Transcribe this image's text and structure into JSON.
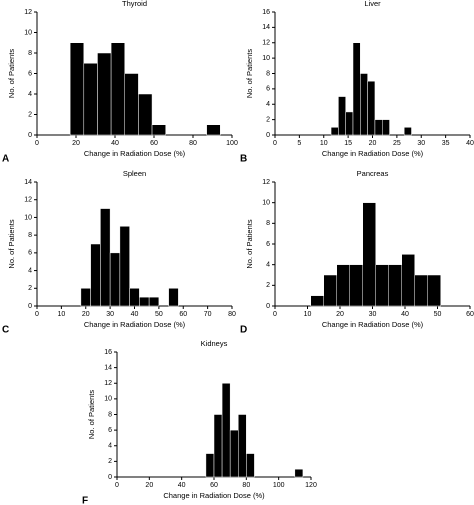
{
  "chart_data": [
    {
      "type": "histogram",
      "panel_label": "A",
      "title": "Thyroid",
      "x_label": "Change in Radiation Dose (%)",
      "y_label": "No. of Patients",
      "color": "#000000",
      "bins": [
        17,
        24,
        31,
        38,
        45,
        52,
        59,
        66,
        73,
        80,
        87,
        94
      ],
      "values": [
        9,
        7,
        8,
        9,
        6,
        4,
        1,
        0,
        0,
        0,
        1
      ],
      "xlim": [
        0,
        100
      ],
      "xticks": [
        0,
        20,
        40,
        60,
        80,
        100
      ],
      "ylim": [
        0,
        12
      ],
      "yticks": [
        0,
        2,
        4,
        6,
        8,
        10,
        12
      ]
    },
    {
      "type": "histogram",
      "panel_label": "B",
      "title": "Liver",
      "x_label": "Change in Radiation Dose (%)",
      "y_label": "No. of Patients",
      "color": "#000000",
      "bins": [
        11.5,
        13,
        14.5,
        16,
        17.5,
        19,
        20.5,
        22,
        23.5,
        25,
        26.5,
        28
      ],
      "values": [
        1,
        5,
        3,
        12,
        8,
        7,
        2,
        2,
        0,
        0,
        1
      ],
      "xlim": [
        0,
        40
      ],
      "xticks": [
        0,
        5,
        10,
        15,
        20,
        25,
        30,
        35,
        40
      ],
      "ylim": [
        0,
        16
      ],
      "yticks": [
        0,
        2,
        4,
        6,
        8,
        10,
        12,
        14,
        16
      ]
    },
    {
      "type": "histogram",
      "panel_label": "C",
      "title": "Spleen",
      "x_label": "Change in Radiation Dose (%)",
      "y_label": "No. of Patients",
      "color": "#000000",
      "bins": [
        18,
        22,
        26,
        30,
        34,
        38,
        42,
        46,
        50,
        54,
        58
      ],
      "values": [
        2,
        7,
        11,
        6,
        9,
        2,
        1,
        1,
        0,
        2
      ],
      "xlim": [
        0,
        80
      ],
      "xticks": [
        0,
        10,
        20,
        30,
        40,
        50,
        60,
        70,
        80
      ],
      "ylim": [
        0,
        14
      ],
      "yticks": [
        0,
        2,
        4,
        6,
        8,
        10,
        12,
        14
      ]
    },
    {
      "type": "histogram",
      "panel_label": "D",
      "title": "Pancreas",
      "x_label": "Change in Radiation Dose (%)",
      "y_label": "No. of Patients",
      "color": "#000000",
      "bins": [
        11,
        15,
        19,
        23,
        27,
        31,
        35,
        39,
        43,
        47,
        51
      ],
      "values": [
        1,
        3,
        4,
        4,
        10,
        4,
        4,
        5,
        3,
        3
      ],
      "xlim": [
        0,
        60
      ],
      "xticks": [
        0,
        10,
        20,
        30,
        40,
        50,
        60
      ],
      "ylim": [
        0,
        12
      ],
      "yticks": [
        0,
        2,
        4,
        6,
        8,
        10,
        12
      ]
    },
    {
      "type": "histogram",
      "panel_label": "F",
      "title": "Kidneys",
      "x_label": "Change in Radiation Dose (%)",
      "y_label": "No. of Patients",
      "color": "#000000",
      "bins": [
        55,
        60,
        65,
        70,
        75,
        80,
        85,
        90,
        95,
        100,
        105,
        110,
        115
      ],
      "values": [
        3,
        8,
        12,
        6,
        8,
        3,
        0,
        0,
        0,
        0,
        0,
        1
      ],
      "xlim": [
        0,
        120
      ],
      "xticks": [
        0,
        20,
        40,
        60,
        80,
        100,
        120
      ],
      "ylim": [
        0,
        16
      ],
      "yticks": [
        0,
        2,
        4,
        6,
        8,
        10,
        12,
        14,
        16
      ]
    }
  ]
}
